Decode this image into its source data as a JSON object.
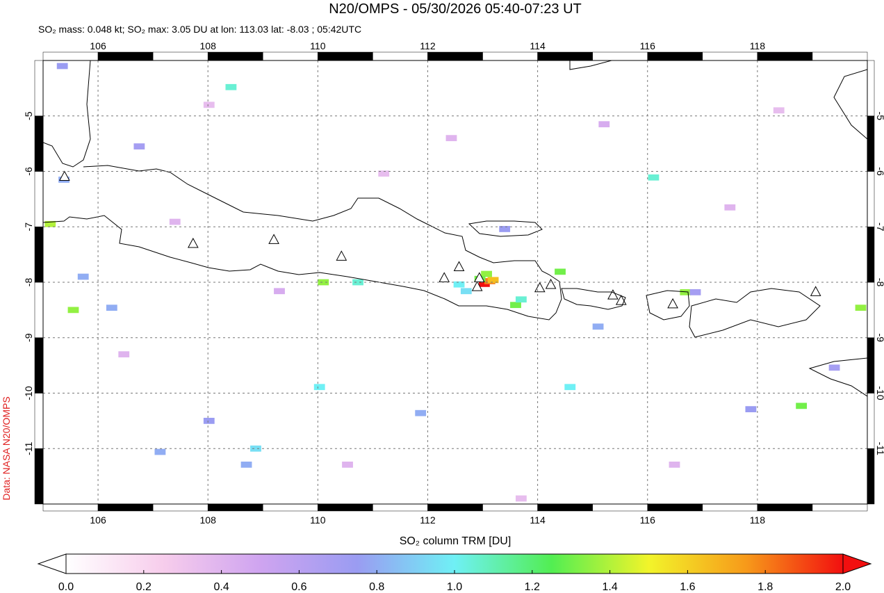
{
  "chart_data": {
    "type": "map",
    "title": "N20/OMPS - 05/30/2026 05:40-07:23 UT",
    "subtitle": "SO₂ mass: 0.048 kt; SO₂ max: 3.05 DU at lon: 113.03 lat: -8.03 ; 05:42UTC",
    "credit": "Data: NASA N20/OMPS",
    "xlim": [
      105,
      120
    ],
    "ylim": [
      -12,
      -4
    ],
    "xticks": [
      106,
      108,
      110,
      112,
      114,
      116,
      118
    ],
    "yticks": [
      -5,
      -6,
      -7,
      -8,
      -9,
      -10,
      -11
    ],
    "grid": true,
    "pixels": {
      "lon": [
        113.03,
        113.13,
        113.19,
        113.07,
        112.95,
        112.57,
        112.7,
        110.1,
        105.13,
        105.55,
        110.73,
        108.42,
        113.6,
        113.7,
        114.41,
        114.59,
        110.03,
        116.11,
        119.88,
        118.8,
        108.87,
        116.69,
        105.35,
        105.38,
        105.73,
        106.25,
        106.75,
        107.13,
        108.02,
        108.7,
        111.87,
        113.4,
        115.1,
        116.87,
        117.88,
        119.4,
        108.02,
        107.4,
        109.3,
        111.2,
        112.43,
        115.21,
        117.5,
        118.39,
        116.49,
        113.7,
        110.54,
        106.47
      ],
      "lat": [
        -8.03,
        -7.98,
        -7.96,
        -7.85,
        -7.94,
        -8.04,
        -8.16,
        -8.0,
        -6.95,
        -8.5,
        -8.0,
        -4.48,
        -8.41,
        -8.31,
        -7.81,
        -9.89,
        -9.89,
        -6.11,
        -8.46,
        -10.23,
        -11.0,
        -8.18,
        -4.1,
        -6.15,
        -7.9,
        -8.46,
        -5.55,
        -11.06,
        -10.5,
        -11.29,
        -10.36,
        -7.04,
        -8.8,
        -8.18,
        -10.29,
        -9.54,
        -4.8,
        -6.91,
        -8.16,
        -6.04,
        -5.4,
        -5.15,
        -6.65,
        -4.9,
        -11.29,
        -11.9,
        -11.29,
        -9.3
      ],
      "values": [
        3.05,
        1.8,
        1.65,
        1.35,
        1.3,
        1.0,
        0.95,
        1.35,
        1.4,
        1.35,
        1.05,
        1.05,
        1.3,
        1.05,
        1.3,
        1.0,
        1.0,
        1.05,
        1.35,
        1.3,
        0.95,
        1.35,
        0.75,
        0.8,
        0.8,
        0.8,
        0.7,
        0.8,
        0.75,
        0.8,
        0.8,
        0.75,
        0.8,
        0.7,
        0.75,
        0.7,
        0.35,
        0.4,
        0.45,
        0.35,
        0.4,
        0.45,
        0.4,
        0.35,
        0.4,
        0.35,
        0.4,
        0.4
      ]
    },
    "volcanoes": {
      "lon": [
        105.39,
        107.73,
        109.2,
        110.43,
        112.3,
        112.57,
        112.94,
        112.9,
        114.04,
        114.24,
        115.37,
        115.52,
        116.46,
        119.06
      ],
      "lat": [
        -6.1,
        -7.31,
        -7.24,
        -7.54,
        -7.93,
        -7.73,
        -7.93,
        -8.09,
        -8.11,
        -8.05,
        -8.24,
        -8.34,
        -8.4,
        -8.18
      ]
    },
    "colorbar": {
      "label": "SO₂ column TRM [DU]",
      "range": [
        0,
        2
      ],
      "colormap": [
        "#ffffff",
        "#f7cdec",
        "#cfa4f0",
        "#9a9cf2",
        "#6ff0f5",
        "#52ee52",
        "#f2f42a",
        "#f79a1a",
        "#f20f0f"
      ],
      "ticks": [
        {
          "value": 0,
          "label": "0.0"
        },
        {
          "value": 0.2,
          "label": "0.2"
        },
        {
          "value": 0.4,
          "label": "0.4"
        },
        {
          "value": 0.6,
          "label": "0.6"
        },
        {
          "value": 0.8,
          "label": "0.8"
        },
        {
          "value": 1,
          "label": "1.0"
        },
        {
          "value": 1.2,
          "label": "1.2"
        },
        {
          "value": 1.4,
          "label": "1.4"
        },
        {
          "value": 1.6,
          "label": "1.6"
        },
        {
          "value": 1.8,
          "label": "1.8"
        },
        {
          "value": 2,
          "label": "2.0"
        }
      ]
    }
  }
}
